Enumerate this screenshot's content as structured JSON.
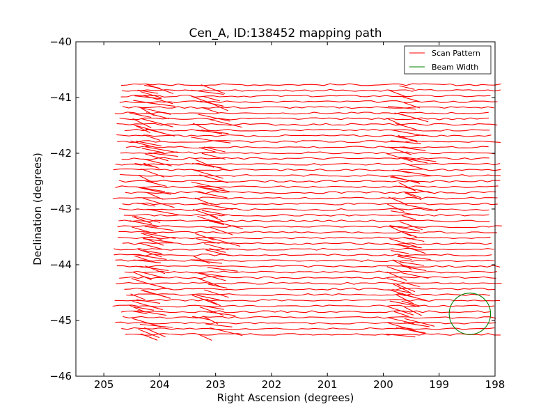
{
  "chart_data": {
    "type": "line",
    "title": "Cen_A, ID:138452 mapping path",
    "xlabel": "Right Ascension (degrees)",
    "ylabel": "Declination (degrees)",
    "xlim": [
      205.5,
      198
    ],
    "ylim": [
      -46,
      -40
    ],
    "x_inverted": true,
    "x_ticks": [
      205,
      204,
      203,
      202,
      201,
      200,
      199,
      198
    ],
    "y_ticks": [
      -40,
      -41,
      -42,
      -43,
      -44,
      -45,
      -46
    ],
    "x_tick_labels": [
      "205",
      "204",
      "203",
      "202",
      "201",
      "200",
      "199",
      "198"
    ],
    "y_tick_labels": [
      "−40",
      "−41",
      "−42",
      "−43",
      "−44",
      "−45",
      "−46"
    ],
    "grid": false,
    "legend": {
      "placement": "top-right",
      "entries": [
        {
          "label": "Scan Pattern",
          "color": "#ff0000"
        },
        {
          "label": "Beam Width",
          "color": "#008000"
        }
      ]
    },
    "scan_pattern": {
      "color": "#ff0000",
      "ra_start": 204.7,
      "ra_end": 198.0,
      "dec_first": -40.77,
      "dec_last": -45.25,
      "leg_count": 45
    },
    "beam_width": {
      "color": "#008000",
      "center_ra": 198.45,
      "center_dec": -44.88,
      "radius_deg": 0.37
    }
  }
}
